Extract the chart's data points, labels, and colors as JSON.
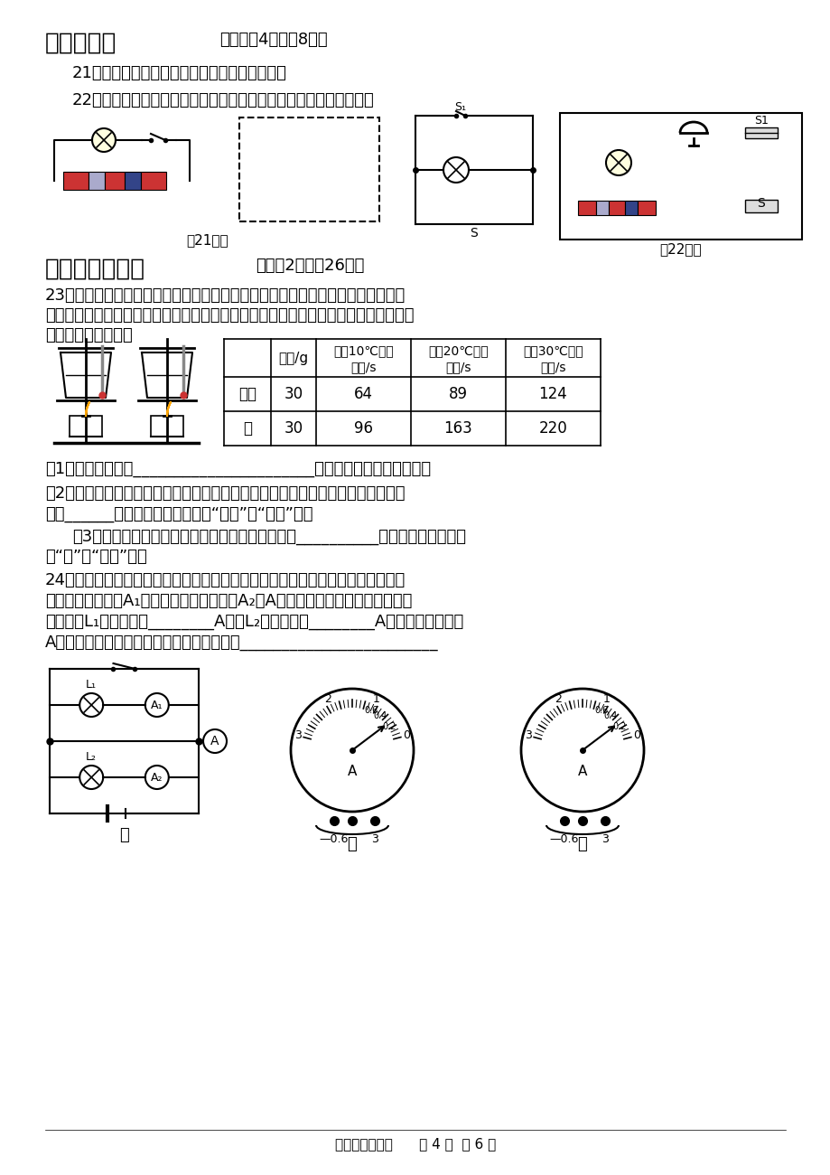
{
  "page_title": "三、作图题",
  "page_title_suffix": "（每小题4分，兲8分）",
  "q21": "21、在虚线框中画出图中左边实物图的电路图。",
  "q22": "22、用笔画线代替导线，按左边的电路图把右边的实物图连接起来。",
  "section4_title": "四、实验探究题",
  "section4_suffix": "（每穰2分，剨26分）",
  "q23_line1": "23．为了比较水和沙子吸热本领的大小，小文做了如下图所示的实验：在两个相同",
  "q23_line2": "的烧杯中，分别装有质量、初温都相同的水和沙子，用两个相同的酒精灯对其加热，实",
  "q23_line3": "验数据记录如下表：",
  "table_h0": "",
  "table_h1": "质量/g",
  "table_h2a": "升温10℃所需",
  "table_h2b": "时间/s",
  "table_h3a": "升温20℃所需",
  "table_h3b": "时间/s",
  "table_h4a": "升温30℃所需",
  "table_h4b": "时间/s",
  "row1_0": "沙子",
  "row1_1": "30",
  "row1_2": "64",
  "row1_3": "89",
  "row1_4": "124",
  "row2_0": "水",
  "row2_1": "30",
  "row2_2": "96",
  "row2_3": "163",
  "row2_4": "220",
  "q23_1": "（1）在此实验中用______________________表示水和沙子吸热的多少；",
  "q23_2a": "（2）分析表中的实验数据可知：质量相同的水和沙子，升高相同温度时，水吸收的",
  "q23_2b": "热量______沙子吸收的热量（选填“大于”或“小于”）；",
  "q23_3a": "（3）如果加热相同的时间，质量相同的水和沙子，__________升高的温度更高（选",
  "q23_3b": "填“水”或“沙子”）。",
  "q24_line1": "24、在探究并联电路电流规律的实验中，小明按下图甲所示电路图连接好电路后，",
  "q24_line2": "闭合开关，电流表A₁的示数乙所示，电流表A₂和A的指针都指向同一刻度，如图丙",
  "q24_line3": "所示，则L₁中的电流为________A，灯L₂中的电流为________A，干路中的电流为",
  "q24_line4": "A，由此初步得出并联电路中电流的规律为：________________________",
  "fig21_label": "第21题图",
  "fig22_label": "第22题图",
  "jia_label": "甲",
  "yi_label": "乙",
  "bing_label": "丙",
  "footer": "九年级物理试卷      第 4 页  共 6 页",
  "bg_color": "#ffffff"
}
